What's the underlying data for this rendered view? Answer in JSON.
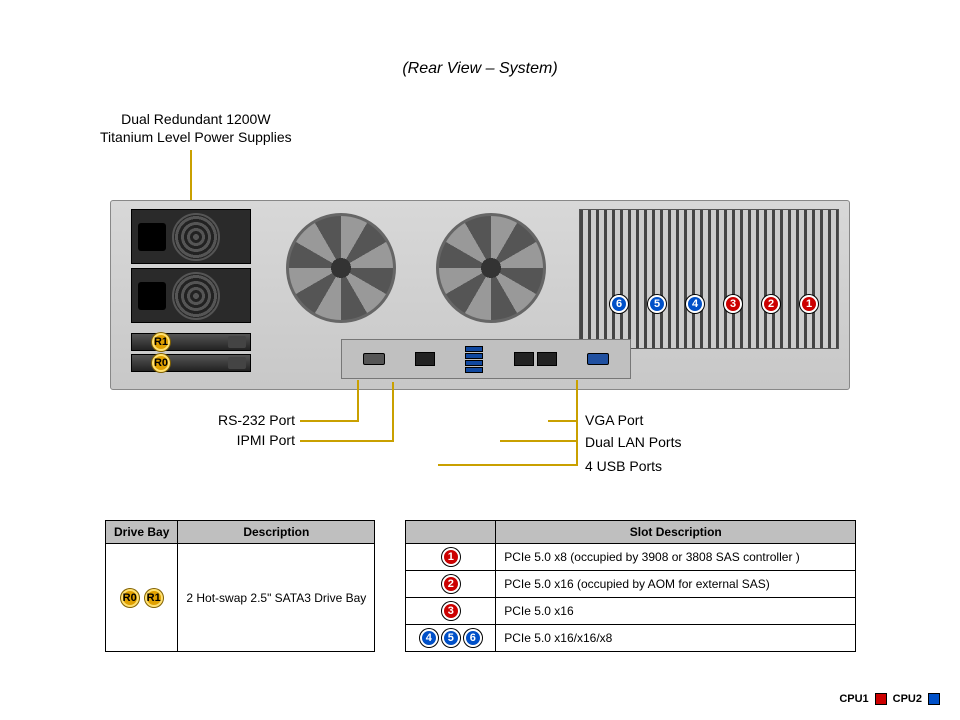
{
  "title": "(Rear View – System)",
  "psu_label_line1": "Dual Redundant 1200W",
  "psu_label_line2": "Titanium Level Power Supplies",
  "colors": {
    "leader": "#c9a000",
    "badge_red": "#cc0000",
    "badge_blue": "#0050c8",
    "badge_amber": "#e0a000",
    "table_header_bg": "#bfbfbf"
  },
  "port_labels": {
    "rs232": "RS-232 Port",
    "ipmi": "IPMI Port",
    "usb": "4 USB Ports",
    "lan": "Dual LAN Ports",
    "vga": "VGA Port"
  },
  "chassis_slots": [
    {
      "num": "6",
      "color": "blue"
    },
    {
      "num": "5",
      "color": "blue"
    },
    {
      "num": "4",
      "color": "blue"
    },
    {
      "num": "3",
      "color": "red"
    },
    {
      "num": "2",
      "color": "red"
    },
    {
      "num": "1",
      "color": "red"
    }
  ],
  "drive_badges": [
    {
      "text": "R1",
      "color": "amber"
    },
    {
      "text": "R0",
      "color": "amber"
    }
  ],
  "drive_table": {
    "headers": [
      "Drive Bay",
      "Description"
    ],
    "rows": [
      {
        "badges": [
          {
            "text": "R0",
            "color": "amber"
          },
          {
            "text": "R1",
            "color": "amber"
          }
        ],
        "desc": "2 Hot-swap 2.5\" SATA3 Drive Bay"
      }
    ]
  },
  "slot_table": {
    "header": "Slot Description",
    "rows": [
      {
        "badges": [
          {
            "num": "1",
            "color": "red"
          }
        ],
        "desc": "PCIe 5.0 x8 (occupied by 3908 or 3808 SAS controller )"
      },
      {
        "badges": [
          {
            "num": "2",
            "color": "red"
          }
        ],
        "desc": "PCIe 5.0 x16 (occupied by AOM for external SAS)"
      },
      {
        "badges": [
          {
            "num": "3",
            "color": "red"
          }
        ],
        "desc": "PCIe 5.0 x16"
      },
      {
        "badges": [
          {
            "num": "4",
            "color": "blue"
          },
          {
            "num": "5",
            "color": "blue"
          },
          {
            "num": "6",
            "color": "blue"
          }
        ],
        "desc": "PCIe 5.0 x16/x16/x8"
      }
    ]
  },
  "legend": {
    "cpu1": {
      "label": "CPU1",
      "color": "#cc0000"
    },
    "cpu2": {
      "label": "CPU2",
      "color": "#0050c8"
    }
  }
}
